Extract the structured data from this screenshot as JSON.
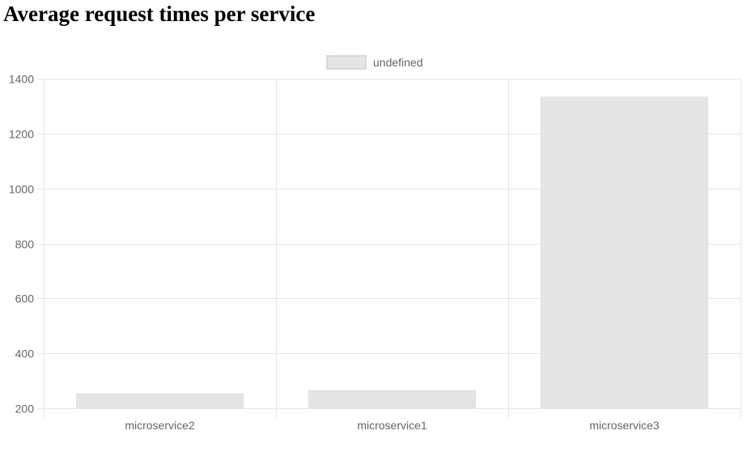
{
  "chart_data": {
    "type": "bar",
    "title": "Average request times per service",
    "categories": [
      "microservice2",
      "microservice1",
      "microservice3"
    ],
    "series": [
      {
        "name": "undefined",
        "values": [
          253,
          265,
          1333
        ]
      }
    ],
    "ylim": [
      200,
      1400
    ],
    "yticks": [
      200,
      400,
      600,
      800,
      1000,
      1200,
      1400
    ],
    "grid": true,
    "legend": "top-center",
    "colors": {
      "bar_fill": "#e5e5e5",
      "bar_border": "#d9d9d9",
      "grid": "#e6e6e6",
      "tick_text": "#666666"
    }
  }
}
